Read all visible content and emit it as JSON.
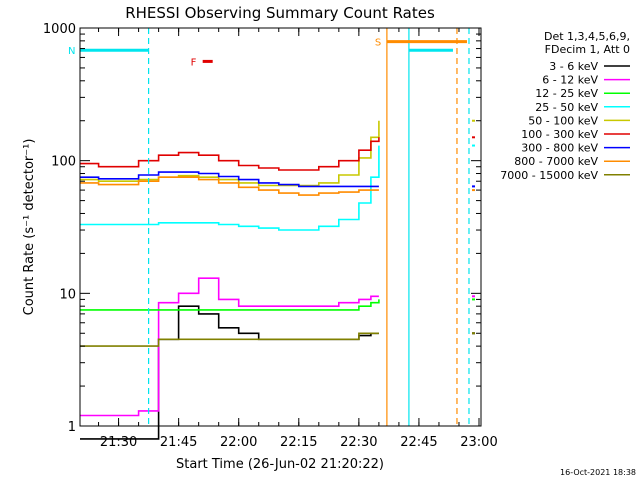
{
  "chart_data": {
    "type": "line",
    "title": "RHESSI Observing Summary Count Rates",
    "xlabel": "Start Time (26-Jun-02 21:20:22)",
    "ylabel": "Count Rate (s⁻¹ detector⁻¹)",
    "y_scale": "log",
    "ylim": [
      1,
      1000
    ],
    "xlim": [
      "21:20:22",
      "23:00:30"
    ],
    "x_ticks": [
      "21:30",
      "21:45",
      "22:00",
      "22:15",
      "22:30",
      "22:45",
      "23:00"
    ],
    "y_ticks": [
      "1",
      "10",
      "100",
      "1000"
    ],
    "grid": false,
    "legend_placement": "right",
    "legend_header": [
      "Det 1,3,4,5,6,9,",
      "FDecim 1, Att 0"
    ],
    "timestamp": "16-Oct-2021 18:38",
    "flags": [
      {
        "label": "N",
        "color": "#00e5ee",
        "segments": [
          [
            "21:20:22",
            "21:37:30"
          ],
          [
            "22:42:30",
            "22:53:30"
          ]
        ],
        "y": 680
      },
      {
        "label": "F",
        "color": "#e00000",
        "segments": [
          [
            "21:51:00",
            "21:53:30"
          ]
        ],
        "y": 560
      },
      {
        "label": "S",
        "color": "#ff8c00",
        "segments": [
          [
            "22:37:00",
            "22:57:00"
          ]
        ],
        "y": 790
      }
    ],
    "vlines": [
      {
        "x": "21:37:30",
        "color": "#00e5ee",
        "style": "dashed"
      },
      {
        "x": "22:42:30",
        "color": "#00e5ee",
        "style": "solid"
      },
      {
        "x": "22:57:30",
        "color": "#00e5ee",
        "style": "dashed"
      },
      {
        "x": "22:37:00",
        "color": "#ff8c00",
        "style": "solid"
      },
      {
        "x": "22:54:30",
        "color": "#ff8c00",
        "style": "dashed"
      }
    ],
    "x": [
      "21:20:22",
      "21:25",
      "21:30",
      "21:35",
      "21:40",
      "21:45",
      "21:50",
      "21:55",
      "22:00",
      "22:05",
      "22:10",
      "22:15",
      "22:20",
      "22:25",
      "22:30",
      "22:33",
      "22:35"
    ],
    "series": [
      {
        "name": "3 - 6 keV",
        "color": "#000000",
        "values": [
          0.8,
          0.8,
          0.8,
          0.8,
          4.5,
          8,
          7,
          5.5,
          5,
          4.5,
          4.5,
          4.5,
          4.5,
          4.5,
          4.8,
          5,
          5
        ]
      },
      {
        "name": "6 - 12 keV",
        "color": "#ff00ff",
        "values": [
          1.2,
          1.2,
          1.2,
          1.3,
          8.5,
          10,
          13,
          9,
          8,
          8,
          8,
          8,
          8,
          8.5,
          9,
          9.5,
          9.5
        ]
      },
      {
        "name": "12 - 25 keV",
        "color": "#00ff00",
        "values": [
          7.5,
          7.5,
          7.5,
          7.5,
          7.5,
          7.5,
          7.5,
          7.5,
          7.5,
          7.5,
          7.5,
          7.5,
          7.5,
          7.5,
          8,
          8.5,
          9
        ]
      },
      {
        "name": "25 - 50 keV",
        "color": "#00ffff",
        "values": [
          33,
          33,
          33,
          33,
          34,
          34,
          34,
          33,
          32,
          31,
          30,
          30,
          32,
          36,
          48,
          75,
          130
        ]
      },
      {
        "name": "50 - 100 keV",
        "color": "#c8c800",
        "values": [
          72,
          70,
          70,
          72,
          75,
          77,
          75,
          72,
          68,
          65,
          65,
          65,
          68,
          78,
          105,
          150,
          200
        ]
      },
      {
        "name": "100 - 300 keV",
        "color": "#e00000",
        "values": [
          95,
          90,
          90,
          100,
          110,
          115,
          110,
          100,
          92,
          88,
          85,
          85,
          90,
          100,
          120,
          140,
          150
        ]
      },
      {
        "name": "300 - 800 keV",
        "color": "#0000ff",
        "values": [
          75,
          73,
          73,
          78,
          82,
          82,
          80,
          76,
          72,
          68,
          66,
          64,
          64,
          64,
          64,
          64,
          64
        ]
      },
      {
        "name": "800 - 7000 keV",
        "color": "#ff8c00",
        "values": [
          68,
          66,
          66,
          70,
          75,
          75,
          72,
          68,
          63,
          60,
          57,
          55,
          57,
          58,
          60,
          60,
          60
        ]
      },
      {
        "name": "7000 - 15000 keV",
        "color": "#808000",
        "values": [
          4,
          4,
          4,
          4,
          4.5,
          4.5,
          4.5,
          4.5,
          4.5,
          4.5,
          4.5,
          4.5,
          4.5,
          4.5,
          5,
          5,
          5
        ]
      }
    ]
  }
}
